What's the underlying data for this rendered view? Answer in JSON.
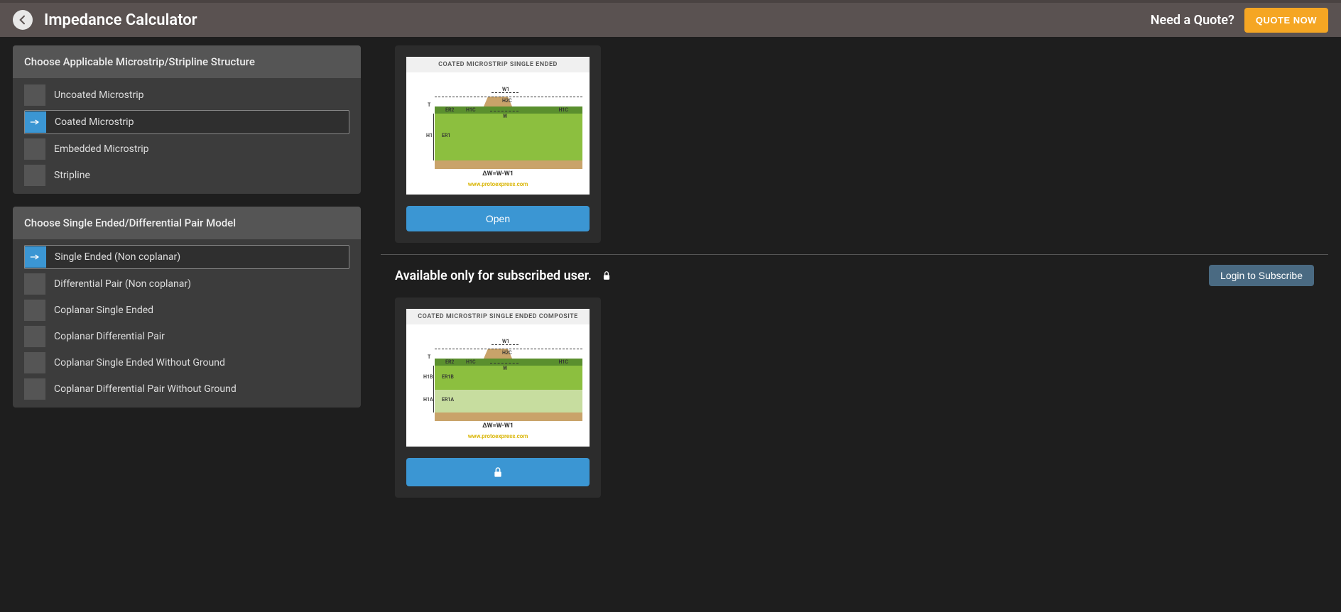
{
  "header": {
    "title": "Impedance Calculator",
    "quote_text": "Need a Quote?",
    "quote_btn": "QUOTE NOW"
  },
  "panel1": {
    "title": "Choose Applicable Microstrip/Stripline Structure",
    "items": [
      {
        "label": "Uncoated Microstrip"
      },
      {
        "label": "Coated Microstrip"
      },
      {
        "label": "Embedded Microstrip"
      },
      {
        "label": "Stripline"
      }
    ],
    "selected": 1
  },
  "panel2": {
    "title": "Choose Single Ended/Differential Pair Model",
    "items": [
      {
        "label": "Single Ended (Non coplanar)"
      },
      {
        "label": "Differential Pair (Non coplanar)"
      },
      {
        "label": "Coplanar Single Ended"
      },
      {
        "label": "Coplanar Differential Pair"
      },
      {
        "label": "Coplanar Single Ended Without Ground"
      },
      {
        "label": "Coplanar Differential Pair Without Ground"
      }
    ],
    "selected": 0
  },
  "card1": {
    "title": "COATED MICROSTRIP SINGLE ENDED",
    "formula": "ΔW=W-W1",
    "url": "www.protoexpress.com",
    "labels": {
      "w1": "W1",
      "h2c": "H2C",
      "t": "T",
      "er2": "ER2",
      "h1c": "H1C",
      "h1c2": "H1C",
      "w": "W",
      "h1": "H1",
      "er1": "ER1"
    },
    "colors": {
      "er1": "#8cbf3f",
      "er2": "#5a8f2e",
      "ground": "#c9a36a",
      "trace": "#c9a36a"
    },
    "btn": "Open"
  },
  "divider_section": {
    "text": "Available only for subscribed user.",
    "login_btn": "Login to Subscribe"
  },
  "card2": {
    "title": "COATED MICROSTRIP SINGLE ENDED COMPOSITE",
    "formula": "ΔW=W-W1",
    "url": "www.protoexpress.com",
    "labels": {
      "w1": "W1",
      "h2c": "H2C",
      "t": "T",
      "er2": "ER2",
      "h1c": "H1C",
      "h1c2": "H1C",
      "w": "W",
      "h1b": "H1B",
      "er1b": "ER1B",
      "h1a": "H1A",
      "er1a": "ER1A"
    },
    "colors": {
      "er1b": "#8cbf3f",
      "er1a": "#c7dd9f",
      "er2": "#5a8f2e",
      "ground": "#c9a36a",
      "trace": "#c9a36a"
    }
  }
}
